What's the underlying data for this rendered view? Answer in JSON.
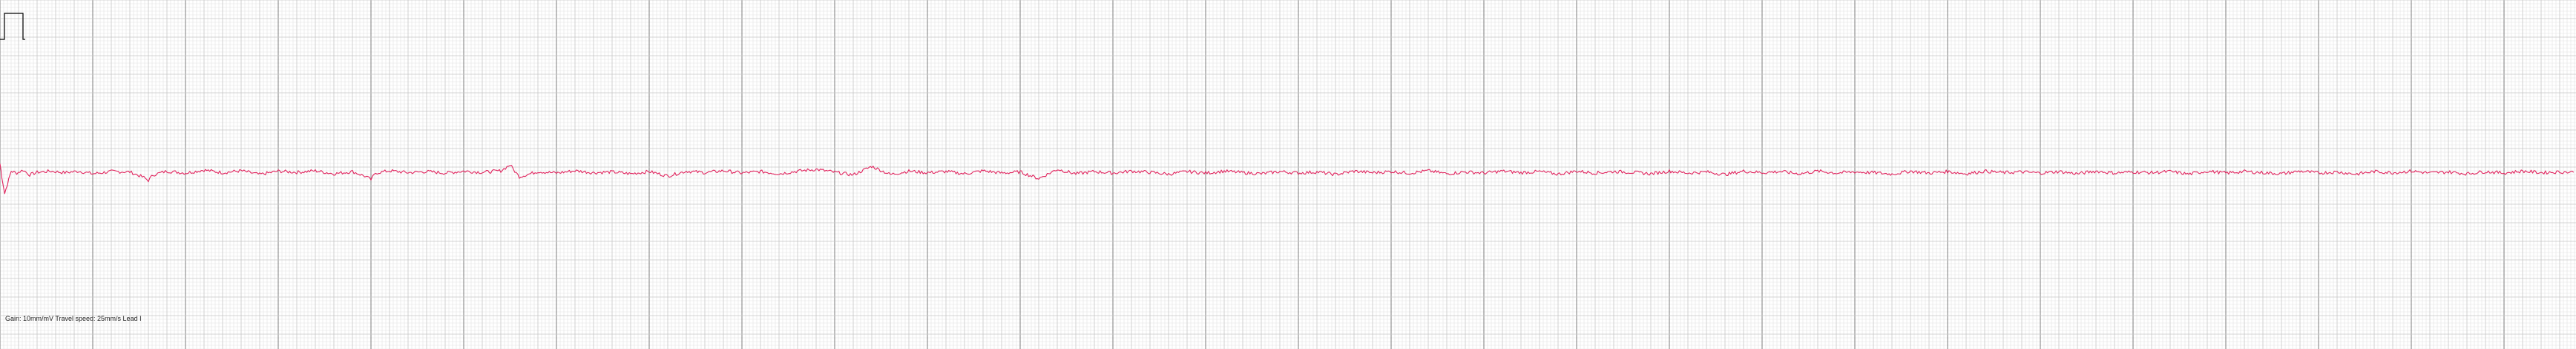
{
  "strip": {
    "caption": "Gain: 10mm/mV Travel speed: 25mm/s Lead I"
  },
  "colors": {
    "background": "#ffffff",
    "minor_grid": "#e2e2e2",
    "major_grid": "#7d7d7d",
    "trace": "#e0245e",
    "calibration": "#000000"
  },
  "chart_data": {
    "type": "line",
    "title": "",
    "xlabel": "",
    "ylabel": "",
    "lead": "Lead I",
    "gain_mm_per_mv": 10,
    "speed_mm_per_s": 25,
    "grid": true,
    "calibration_pulse_mv": 1.0,
    "x_unit": "s",
    "y_unit": "mV",
    "xlim": [
      0,
      27.8
    ],
    "ylim": [
      -2.6,
      1.15
    ],
    "series": [
      {
        "name": "",
        "description_points": "sparse keypoints of the recorded trace (time in s, amplitude in mV)",
        "x": [
          0.0,
          0.02,
          0.05,
          0.08,
          0.12,
          0.18,
          0.25,
          0.32,
          0.4,
          0.55,
          0.7,
          0.85,
          1.0,
          1.2,
          1.4,
          1.55,
          1.6,
          1.65,
          1.8,
          2.0,
          2.2,
          2.4,
          2.6,
          2.8,
          3.0,
          3.2,
          3.4,
          3.6,
          3.8,
          3.95,
          4.0,
          4.05,
          4.2,
          4.4,
          4.6,
          4.8,
          5.0,
          5.2,
          5.4,
          5.5,
          5.55,
          5.6,
          5.8,
          6.0,
          6.2,
          6.4,
          6.6,
          6.8,
          7.0,
          7.2,
          7.4,
          7.6,
          7.8,
          8.0,
          8.2,
          8.4,
          8.6,
          8.8,
          9.0,
          9.2,
          9.4,
          9.6,
          9.8,
          10.0,
          10.2,
          10.4,
          10.6,
          10.8,
          11.0,
          11.2,
          11.4,
          11.6,
          11.8,
          12.0,
          12.2,
          12.4,
          12.6,
          12.8,
          13.0,
          13.2,
          13.4,
          13.6,
          13.8,
          14.0,
          14.2,
          14.4,
          14.6,
          14.8,
          15.0,
          15.2,
          15.4,
          15.6,
          15.8,
          16.0,
          16.2,
          16.4,
          16.6,
          16.8,
          17.0,
          17.2,
          17.4,
          17.6,
          17.8,
          18.0,
          18.2,
          18.4,
          18.6,
          18.8,
          19.0,
          19.2,
          19.4,
          19.6,
          19.8,
          20.0,
          20.2,
          20.4,
          20.6,
          20.8,
          21.0,
          21.2,
          21.4,
          21.6,
          21.8,
          22.0,
          22.2,
          22.4,
          22.6,
          22.8,
          23.0,
          23.2,
          23.4,
          23.6,
          23.8,
          24.0,
          24.2,
          24.4,
          24.6,
          24.8,
          25.0,
          25.2,
          25.4,
          25.6,
          25.8,
          26.0,
          26.2,
          26.4,
          26.6,
          26.8,
          27.0,
          27.2,
          27.4,
          27.6,
          27.75
        ],
        "y": [
          0.25,
          -0.1,
          -0.55,
          -0.3,
          0.05,
          0.0,
          0.08,
          -0.05,
          0.02,
          0.05,
          0.01,
          0.05,
          -0.02,
          0.04,
          0.03,
          -0.12,
          -0.2,
          -0.05,
          0.05,
          0.0,
          0.08,
          0.01,
          0.06,
          -0.04,
          0.05,
          0.02,
          0.06,
          -0.02,
          0.04,
          -0.1,
          -0.18,
          0.0,
          0.06,
          0.01,
          0.04,
          0.0,
          0.05,
          0.02,
          0.06,
          0.22,
          0.05,
          -0.1,
          0.04,
          0.0,
          0.06,
          0.01,
          0.03,
          -0.02,
          0.04,
          -0.08,
          0.05,
          0.01,
          0.06,
          0.0,
          0.04,
          -0.02,
          0.05,
          0.1,
          0.02,
          -0.05,
          0.18,
          -0.04,
          0.05,
          0.01,
          0.04,
          -0.02,
          0.06,
          0.0,
          0.03,
          -0.15,
          0.1,
          -0.02,
          0.04,
          0.0,
          0.05,
          0.02,
          -0.03,
          0.04,
          0.0,
          0.05,
          0.01,
          -0.02,
          0.04,
          0.0,
          0.03,
          -0.04,
          0.05,
          0.01,
          0.04,
          0.0,
          0.06,
          -0.02,
          0.03,
          0.0,
          0.05,
          0.01,
          0.04,
          -0.03,
          0.05,
          0.0,
          0.04,
          0.02,
          -0.02,
          0.05,
          0.0,
          0.03,
          -0.04,
          0.05,
          0.01,
          0.04,
          -0.02,
          0.05,
          0.0,
          0.03,
          0.01,
          -0.03,
          0.05,
          0.0,
          0.04,
          -0.02,
          0.05,
          0.01,
          0.03,
          0.0,
          0.04,
          -0.02,
          0.05,
          0.0,
          0.03,
          0.01,
          0.04,
          -0.03,
          0.05,
          0.0,
          0.04,
          0.01,
          -0.02,
          0.05,
          0.0,
          0.03,
          -0.03,
          0.04,
          0.01,
          0.05,
          0.0,
          0.03,
          -0.02,
          0.04,
          0.0,
          0.05,
          0.01,
          0.03,
          0.02
        ]
      }
    ]
  }
}
